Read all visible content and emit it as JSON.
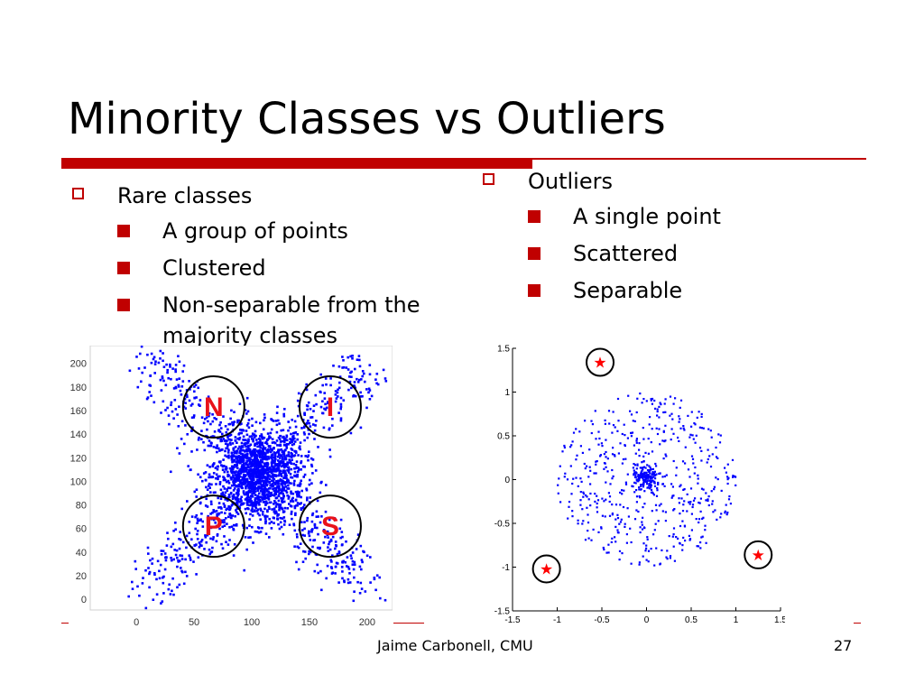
{
  "title": "Minority Classes vs Outliers",
  "left_bullets": {
    "heading": "Rare classes",
    "items": [
      "A group of points",
      "Clustered",
      "Non-separable from the majority classes"
    ]
  },
  "right_bullets": {
    "heading": "Outliers",
    "items": [
      "A single point",
      "Scattered",
      "Separable"
    ]
  },
  "footer": {
    "author": "Jaime Carbonell, CMU",
    "page": "27"
  },
  "colors": {
    "accent": "#c00000",
    "points": "#0000ff",
    "star": "#ff0000",
    "label": "#e8121a"
  },
  "chart_data": [
    {
      "type": "scatter",
      "description_key": "rare-classes",
      "xticks": [
        "0",
        "50",
        "100",
        "150",
        "200"
      ],
      "yticks": [
        "0",
        "20",
        "40",
        "60",
        "80",
        "100",
        "120",
        "140",
        "160",
        "180",
        "200"
      ],
      "xlim": [
        -40,
        222
      ],
      "ylim": [
        -9,
        215
      ],
      "majority_cluster": {
        "center": [
          105,
          105
        ],
        "count": 1400
      },
      "rare_clusters": [
        {
          "label": "N",
          "center": [
            67,
            163
          ]
        },
        {
          "label": "I",
          "center": [
            168,
            163
          ]
        },
        {
          "label": "P",
          "center": [
            67,
            62
          ]
        },
        {
          "label": "S",
          "center": [
            168,
            62
          ]
        }
      ]
    },
    {
      "type": "scatter",
      "description_key": "outliers",
      "xticks": [
        "-1.5",
        "-1",
        "-0.5",
        "0",
        "0.5",
        "1",
        "1.5"
      ],
      "yticks": [
        "1.5",
        "1",
        "0.5",
        "0",
        "-0.5",
        "-1",
        "-1.5"
      ],
      "xlim": [
        -1.5,
        1.5
      ],
      "ylim": [
        -1.5,
        1.5
      ],
      "disk": {
        "center": [
          0,
          0
        ],
        "radius": 1.0,
        "count": 520
      },
      "core": {
        "center": [
          0,
          0
        ],
        "count": 150
      },
      "outliers": [
        [
          -0.52,
          1.34
        ],
        [
          -1.12,
          -1.02
        ],
        [
          1.25,
          -0.86
        ]
      ]
    }
  ]
}
